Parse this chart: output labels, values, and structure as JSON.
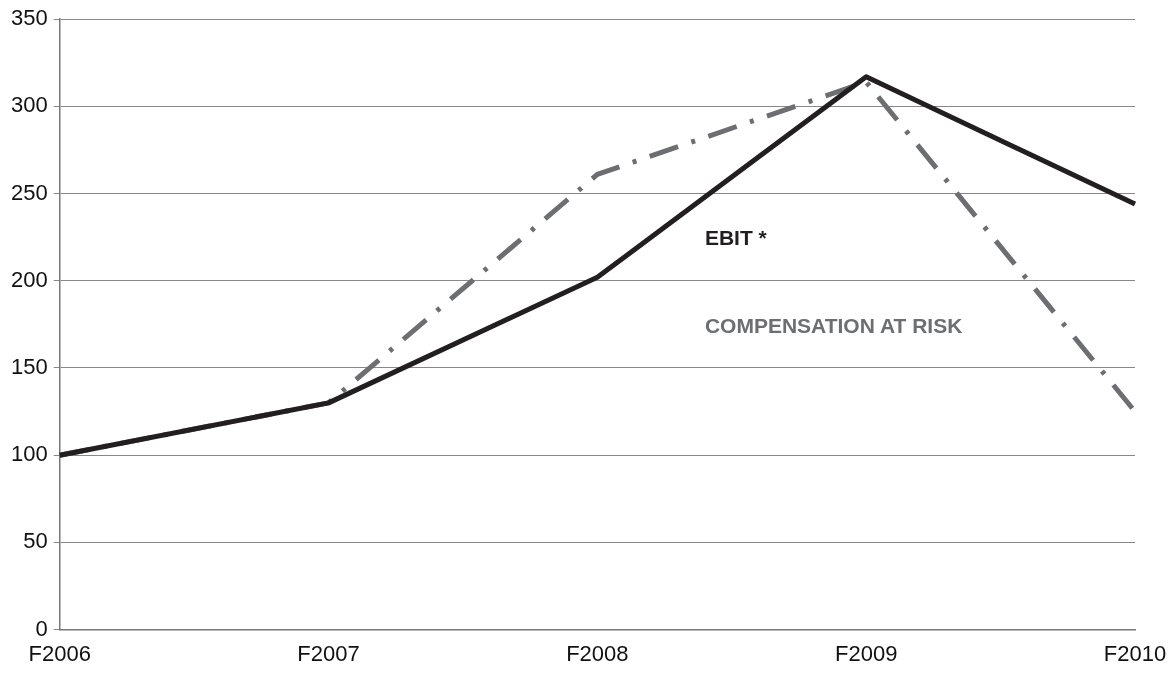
{
  "chart_data": {
    "type": "line",
    "categories": [
      "F2006",
      "F2007",
      "F2008",
      "F2009",
      "F2010"
    ],
    "series": [
      {
        "name": "EBIT *",
        "color": "#231f20",
        "values": [
          100,
          130,
          202,
          317,
          244
        ],
        "line_style": "solid"
      },
      {
        "name": "COMPENSATION AT RISK",
        "color": "#6d6e71",
        "values": [
          100,
          130,
          261,
          314,
          125
        ],
        "line_style": "dashed"
      }
    ],
    "ylim": [
      0,
      350
    ],
    "yticks": [
      0,
      50,
      100,
      150,
      200,
      250,
      300,
      350
    ],
    "grid": "y",
    "legend": false,
    "marker": "none"
  }
}
